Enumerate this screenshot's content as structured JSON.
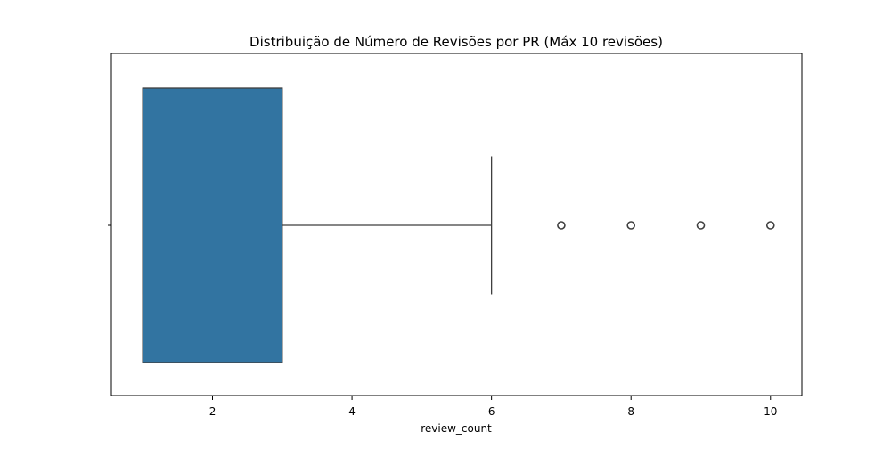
{
  "chart_data": {
    "type": "boxplot",
    "orientation": "horizontal",
    "title": "Distribuição de Número de Revisões por PR (Máx 10 revisões)",
    "xlabel": "review_count",
    "ylabel": "",
    "xlim": [
      0.55,
      10.45
    ],
    "xticks": [
      2,
      4,
      6,
      8,
      10
    ],
    "xtick_labels": [
      "2",
      "4",
      "6",
      "8",
      "10"
    ],
    "grid": false,
    "box": {
      "whisker_low": 1,
      "q1": 1,
      "median": 1,
      "q3": 3,
      "whisker_high": 6,
      "outliers": [
        7,
        8,
        9,
        10
      ]
    },
    "colors": {
      "box_fill": "#3274a1",
      "line": "#3f3f3f"
    }
  }
}
